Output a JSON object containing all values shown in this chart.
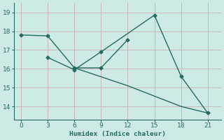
{
  "line1_x": [
    0,
    3,
    6,
    9,
    12
  ],
  "line1_y": [
    17.8,
    17.75,
    16.05,
    16.05,
    17.55
  ],
  "line2_x": [
    3,
    6,
    9,
    15,
    18,
    21
  ],
  "line2_y": [
    16.6,
    15.95,
    16.9,
    18.85,
    15.6,
    13.65
  ],
  "line3_x": [
    6,
    12,
    18,
    21
  ],
  "line3_y": [
    16.05,
    15.1,
    14.0,
    13.65
  ],
  "line_color": "#236b63",
  "bg_color": "#ceeae6",
  "grid_major_color": "#b8d8d4",
  "grid_minor_color": "#d4bcbc",
  "xlabel": "Humidex (Indice chaleur)",
  "xticks": [
    0,
    3,
    6,
    9,
    12,
    15,
    18,
    21
  ],
  "yticks": [
    14,
    15,
    16,
    17,
    18,
    19
  ],
  "ylim": [
    13.3,
    19.5
  ],
  "xlim": [
    -0.8,
    22.5
  ]
}
